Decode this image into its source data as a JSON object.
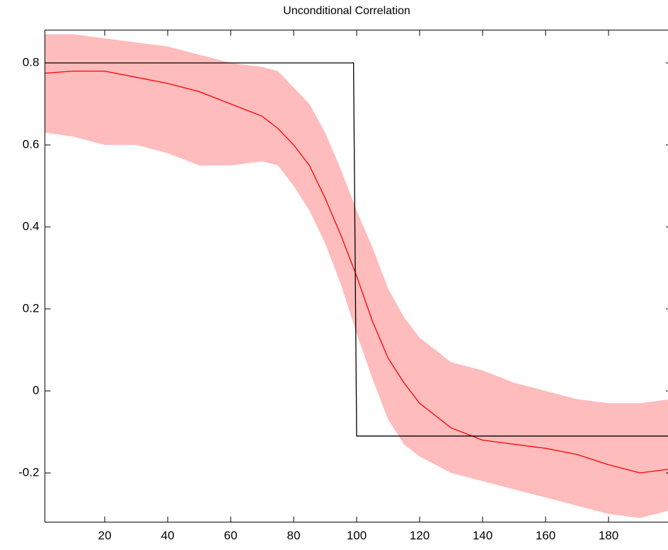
{
  "chart_data": {
    "type": "line",
    "title": "Unconditional Correlation",
    "x": [
      1,
      10,
      20,
      30,
      40,
      50,
      60,
      70,
      75,
      80,
      85,
      90,
      95,
      100,
      105,
      110,
      115,
      120,
      130,
      140,
      150,
      160,
      170,
      180,
      190,
      200
    ],
    "band": {
      "color": "#ffbcbc",
      "upper": [
        0.87,
        0.87,
        0.86,
        0.85,
        0.84,
        0.82,
        0.8,
        0.79,
        0.78,
        0.74,
        0.7,
        0.63,
        0.54,
        0.44,
        0.35,
        0.25,
        0.18,
        0.13,
        0.07,
        0.05,
        0.02,
        0.0,
        -0.02,
        -0.03,
        -0.03,
        -0.02
      ],
      "lower": [
        0.63,
        0.62,
        0.6,
        0.6,
        0.58,
        0.55,
        0.55,
        0.56,
        0.55,
        0.5,
        0.44,
        0.36,
        0.26,
        0.14,
        0.03,
        -0.07,
        -0.13,
        -0.16,
        -0.2,
        -0.22,
        -0.24,
        -0.26,
        -0.28,
        -0.3,
        -0.31,
        -0.29
      ]
    },
    "series": [
      {
        "color": "#ff0000",
        "values": [
          0.775,
          0.78,
          0.78,
          0.765,
          0.75,
          0.73,
          0.7,
          0.67,
          0.64,
          0.6,
          0.55,
          0.47,
          0.38,
          0.28,
          0.17,
          0.08,
          0.02,
          -0.03,
          -0.09,
          -0.12,
          -0.13,
          -0.14,
          -0.155,
          -0.18,
          -0.2,
          -0.19
        ]
      },
      {
        "color": "#000000",
        "x": [
          1,
          99,
          100,
          200
        ],
        "values": [
          0.8,
          0.8,
          -0.11,
          -0.11
        ]
      }
    ],
    "xlim": [
      1,
      200
    ],
    "ylim": [
      -0.32,
      0.88
    ],
    "xticks": [
      20,
      40,
      60,
      80,
      100,
      120,
      140,
      160,
      180
    ],
    "yticks": [
      -0.2,
      0,
      0.2,
      0.4,
      0.6,
      0.8
    ],
    "grid": false
  }
}
